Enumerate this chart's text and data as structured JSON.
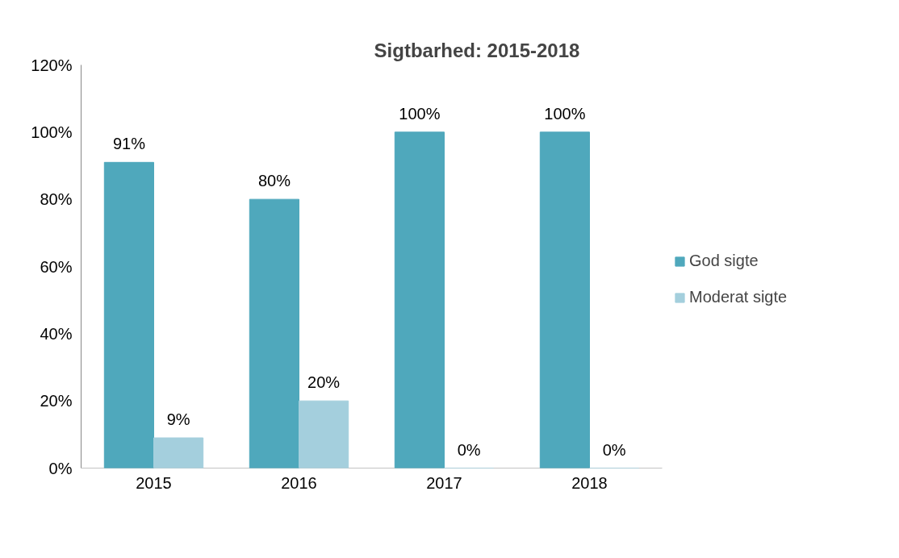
{
  "chart_data": {
    "type": "bar",
    "title": "Sigtbarhed: 2015-2018",
    "categories": [
      "2015",
      "2016",
      "2017",
      "2018"
    ],
    "series": [
      {
        "name": "God sigte",
        "color": "#4fa8bc",
        "values": [
          91,
          80,
          100,
          100
        ],
        "value_labels": [
          "91%",
          "80%",
          "100%",
          "100%"
        ]
      },
      {
        "name": "Moderat sigte",
        "color": "#a4cfdd",
        "values": [
          9,
          20,
          0,
          0
        ],
        "value_labels": [
          "9%",
          "20%",
          "0%",
          "0%"
        ]
      }
    ],
    "ylim": [
      0,
      120
    ],
    "yticks": [
      {
        "value": 0,
        "label": "0%"
      },
      {
        "value": 20,
        "label": "20%"
      },
      {
        "value": 40,
        "label": "40%"
      },
      {
        "value": 60,
        "label": "60%"
      },
      {
        "value": 80,
        "label": "80%"
      },
      {
        "value": 100,
        "label": "100%"
      },
      {
        "value": 120,
        "label": "120%"
      }
    ],
    "grid": false,
    "legend": "right"
  }
}
